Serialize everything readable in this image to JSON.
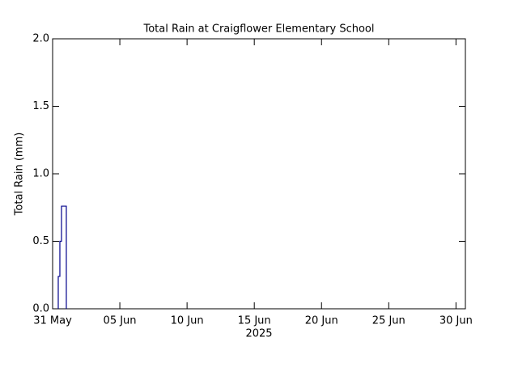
{
  "chart_data": {
    "type": "line",
    "title": "Total Rain at Craigflower Elementary School",
    "y_label": "Total Rain (mm)",
    "x_label": "2025",
    "x": [
      0.42,
      0.42,
      0.54,
      0.54,
      0.66,
      0.66,
      1.02,
      1.02
    ],
    "series": [
      {
        "color": "#00008b",
        "values": [
          0,
          0.24,
          0.24,
          0.5,
          0.5,
          0.76,
          0.76,
          0
        ]
      }
    ],
    "xlim": [
      0,
      30.7
    ],
    "xticks": [
      {
        "value": 0,
        "label": "31 May"
      },
      {
        "value": 5,
        "label": "05 Jun"
      },
      {
        "value": 10,
        "label": "10 Jun"
      },
      {
        "value": 15,
        "label": "15 Jun"
      },
      {
        "value": 20,
        "label": "20 Jun"
      },
      {
        "value": 25,
        "label": "25 Jun"
      },
      {
        "value": 30,
        "label": "30 Jun"
      }
    ],
    "ylim": [
      0,
      2
    ],
    "yticks": [
      {
        "value": 0,
        "label": "0.0"
      },
      0.5,
      {
        "value": 1,
        "label": "1.0"
      },
      1.5,
      {
        "value": 2,
        "label": "2.0"
      }
    ]
  }
}
